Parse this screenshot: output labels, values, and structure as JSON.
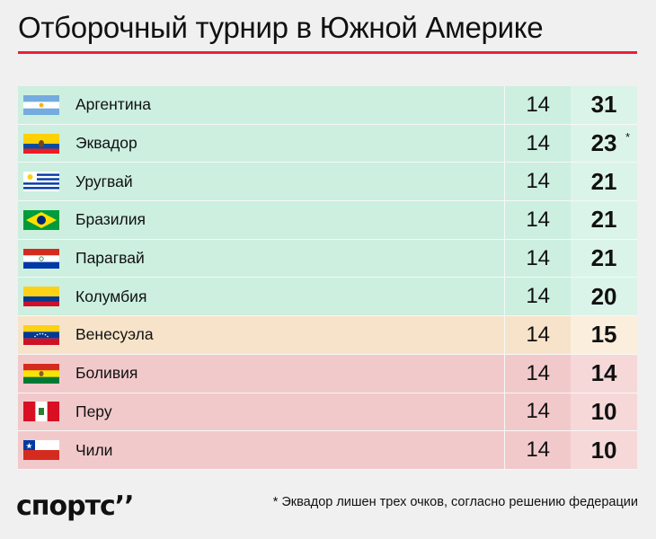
{
  "title": "Отборочный турнир в Южной Америке",
  "rows": [
    {
      "country": "Аргентина",
      "games": "14",
      "points": "31",
      "zone": "green",
      "flag": "argentina-flag"
    },
    {
      "country": "Эквадор",
      "games": "14",
      "points": "23",
      "zone": "green",
      "flag": "ecuador-flag",
      "note": "*"
    },
    {
      "country": "Уругвай",
      "games": "14",
      "points": "21",
      "zone": "green",
      "flag": "uruguay-flag"
    },
    {
      "country": "Бразилия",
      "games": "14",
      "points": "21",
      "zone": "green",
      "flag": "brazil-flag"
    },
    {
      "country": "Парагвай",
      "games": "14",
      "points": "21",
      "zone": "green",
      "flag": "paraguay-flag"
    },
    {
      "country": "Колумбия",
      "games": "14",
      "points": "20",
      "zone": "green",
      "flag": "colombia-flag"
    },
    {
      "country": "Венесуэла",
      "games": "14",
      "points": "15",
      "zone": "orange",
      "flag": "venezuela-flag"
    },
    {
      "country": "Боливия",
      "games": "14",
      "points": "14",
      "zone": "red",
      "flag": "bolivia-flag"
    },
    {
      "country": "Перу",
      "games": "14",
      "points": "10",
      "zone": "red",
      "flag": "peru-flag"
    },
    {
      "country": "Чили",
      "games": "14",
      "points": "10",
      "zone": "red",
      "flag": "chile-flag"
    }
  ],
  "colors": {
    "accent": "#e8203a",
    "green": "#ccefe0",
    "orange": "#f7e3c9",
    "red": "#f2c9cb"
  },
  "footer": {
    "logo": "спортс’’",
    "note": "* Эквадор лишен трех очков, согласно решению федерации"
  }
}
